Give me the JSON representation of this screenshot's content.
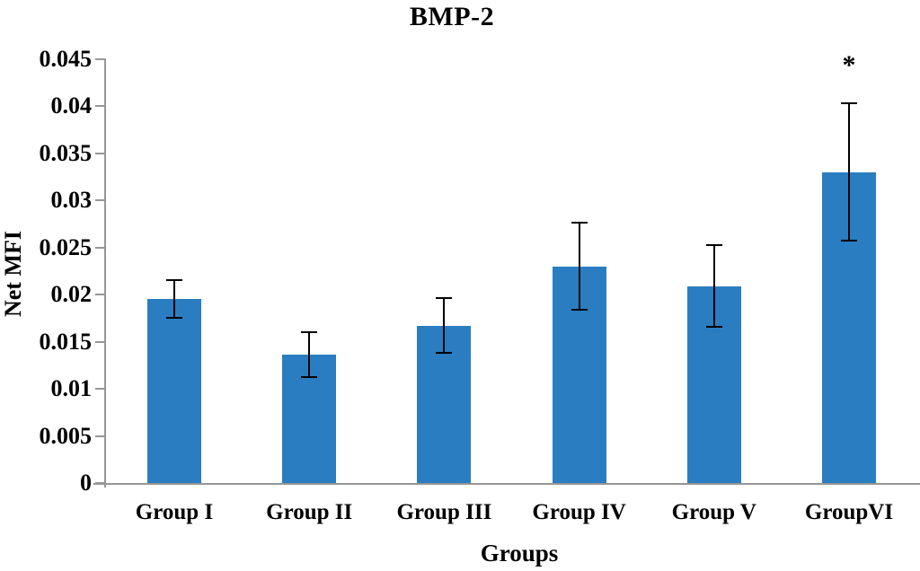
{
  "chart_data": {
    "type": "bar",
    "title": "BMP-2",
    "xlabel": "Groups",
    "ylabel": "Net MFI",
    "categories": [
      "Group I",
      "Group II",
      "Group III",
      "Group IV",
      "Group V",
      "GroupVI"
    ],
    "values": [
      0.0195,
      0.0136,
      0.0167,
      0.023,
      0.0209,
      0.033
    ],
    "errors": [
      0.002,
      0.0024,
      0.0029,
      0.0046,
      0.0043,
      0.0073
    ],
    "annotations": [
      {
        "category_index": 5,
        "text": "*"
      }
    ],
    "ylim": [
      0,
      0.045
    ],
    "yticks": {
      "values": [
        0,
        0.005,
        0.01,
        0.015,
        0.02,
        0.025,
        0.03,
        0.035,
        0.04,
        0.045
      ],
      "labels": [
        "0",
        "0.005",
        "0.01",
        "0.015",
        "0.02",
        "0.025",
        "0.03",
        "0.035",
        "0.04",
        "0.045"
      ]
    },
    "grid": false,
    "legend": false,
    "bar_color": "#2A7DC1",
    "axis_color": "#969696",
    "error_color": "#000000",
    "text_color": "#000000"
  }
}
